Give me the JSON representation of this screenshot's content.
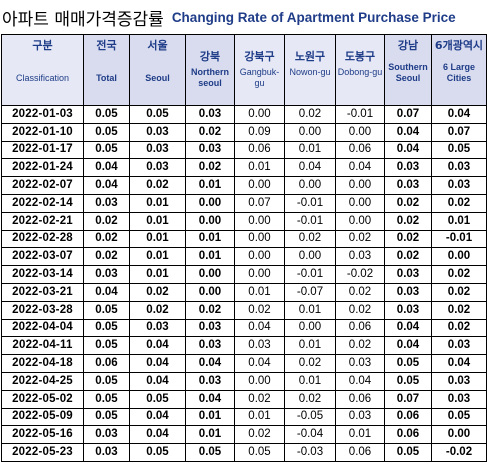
{
  "title": {
    "korean": "아파트 매매가격증감률",
    "english": "Changing Rate of Apartment Purchase Price"
  },
  "columns": [
    {
      "kr": "구분",
      "en": "Classification",
      "bold": false
    },
    {
      "kr": "전국",
      "en": "Total",
      "bold": true
    },
    {
      "kr": "서울",
      "en": "Seoul",
      "bold": true
    },
    {
      "kr": "강북",
      "en": "Northern seoul",
      "bold": true
    },
    {
      "kr": "강북구",
      "en": "Gangbuk-gu",
      "bold": false
    },
    {
      "kr": "노원구",
      "en": "Nowon-gu",
      "bold": false
    },
    {
      "kr": "도봉구",
      "en": "Dobong-gu",
      "bold": false
    },
    {
      "kr": "강남",
      "en": "Southern Seoul",
      "bold": true
    },
    {
      "kr": "6개광역시",
      "en": "6 Large Cities",
      "bold": true
    }
  ],
  "rows": [
    {
      "date": "2022-01-03",
      "v": [
        "0.05",
        "0.05",
        "0.03",
        "0.00",
        "0.02",
        "-0.01",
        "0.07",
        "0.04"
      ]
    },
    {
      "date": "2022-01-10",
      "v": [
        "0.05",
        "0.03",
        "0.02",
        "0.09",
        "0.00",
        "0.00",
        "0.04",
        "0.07"
      ]
    },
    {
      "date": "2022-01-17",
      "v": [
        "0.05",
        "0.03",
        "0.03",
        "0.06",
        "0.01",
        "0.06",
        "0.04",
        "0.05"
      ]
    },
    {
      "date": "2022-01-24",
      "v": [
        "0.04",
        "0.03",
        "0.02",
        "0.01",
        "0.04",
        "0.04",
        "0.03",
        "0.03"
      ]
    },
    {
      "date": "2022-02-07",
      "v": [
        "0.04",
        "0.02",
        "0.01",
        "0.00",
        "0.00",
        "0.00",
        "0.03",
        "0.03"
      ]
    },
    {
      "date": "2022-02-14",
      "v": [
        "0.03",
        "0.01",
        "0.00",
        "0.07",
        "-0.01",
        "0.00",
        "0.02",
        "0.02"
      ]
    },
    {
      "date": "2022-02-21",
      "v": [
        "0.02",
        "0.01",
        "0.00",
        "0.00",
        "-0.01",
        "0.00",
        "0.02",
        "0.01"
      ]
    },
    {
      "date": "2022-02-28",
      "v": [
        "0.02",
        "0.01",
        "0.01",
        "0.00",
        "0.02",
        "0.02",
        "0.02",
        "-0.01"
      ]
    },
    {
      "date": "2022-03-07",
      "v": [
        "0.02",
        "0.01",
        "0.01",
        "0.00",
        "0.00",
        "0.03",
        "0.02",
        "0.00"
      ]
    },
    {
      "date": "2022-03-14",
      "v": [
        "0.03",
        "0.01",
        "0.00",
        "0.00",
        "-0.01",
        "-0.02",
        "0.03",
        "0.02"
      ]
    },
    {
      "date": "2022-03-21",
      "v": [
        "0.04",
        "0.02",
        "0.00",
        "0.01",
        "-0.07",
        "0.02",
        "0.03",
        "0.02"
      ]
    },
    {
      "date": "2022-03-28",
      "v": [
        "0.05",
        "0.02",
        "0.02",
        "0.02",
        "0.01",
        "0.02",
        "0.03",
        "0.02"
      ]
    },
    {
      "date": "2022-04-04",
      "v": [
        "0.05",
        "0.03",
        "0.03",
        "0.04",
        "0.00",
        "0.06",
        "0.04",
        "0.02"
      ]
    },
    {
      "date": "2022-04-11",
      "v": [
        "0.05",
        "0.04",
        "0.03",
        "0.03",
        "0.01",
        "0.02",
        "0.04",
        "0.03"
      ]
    },
    {
      "date": "2022-04-18",
      "v": [
        "0.06",
        "0.04",
        "0.04",
        "0.04",
        "0.02",
        "0.03",
        "0.05",
        "0.04"
      ]
    },
    {
      "date": "2022-04-25",
      "v": [
        "0.05",
        "0.04",
        "0.03",
        "0.00",
        "0.01",
        "0.04",
        "0.05",
        "0.03"
      ]
    },
    {
      "date": "2022-05-02",
      "v": [
        "0.05",
        "0.05",
        "0.04",
        "0.02",
        "0.02",
        "0.06",
        "0.07",
        "0.03"
      ]
    },
    {
      "date": "2022-05-09",
      "v": [
        "0.05",
        "0.04",
        "0.01",
        "0.01",
        "-0.05",
        "0.03",
        "0.06",
        "0.05"
      ]
    },
    {
      "date": "2022-05-16",
      "v": [
        "0.03",
        "0.04",
        "0.01",
        "0.02",
        "-0.04",
        "0.01",
        "0.06",
        "0.00"
      ]
    },
    {
      "date": "2022-05-23",
      "v": [
        "0.03",
        "0.05",
        "0.05",
        "0.05",
        "-0.03",
        "0.06",
        "0.05",
        "-0.02"
      ]
    }
  ],
  "colors": {
    "header_bg": "#E6E9F5",
    "header_text": "#1F3C88",
    "title_en": "#1F3C88",
    "border": "#000000"
  }
}
